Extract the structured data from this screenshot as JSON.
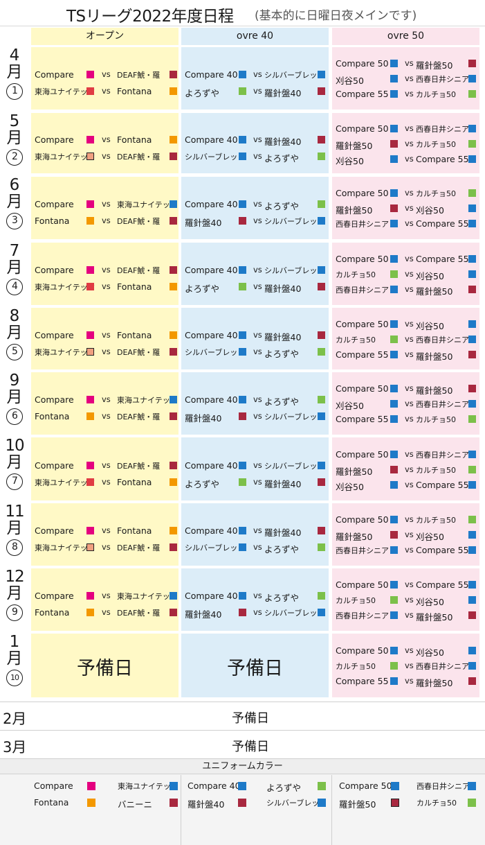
{
  "title": "TSリーグ2022年度日程",
  "subtitle": "(基本的に日曜日夜メインです)",
  "headers": {
    "open": "オープン",
    "o40": "ovre 40",
    "o50": "ovre 50"
  },
  "colors": {
    "magenta": "#e4007f",
    "red": "#e03c44",
    "orange": "#f39800",
    "salmon": "#f0a080",
    "maroon": "#a8283f",
    "blue": "#1e7ac8",
    "green": "#7cc04a"
  },
  "reserve_label": "予備日",
  "months": [
    {
      "month": "4",
      "unit": "月",
      "round": "1",
      "open": [
        [
          "Compare",
          "magenta",
          "DEAF鯱・羅",
          "maroon"
        ],
        [
          "東海ユナイテッド",
          "red",
          "Fontana",
          "orange"
        ]
      ],
      "o40": [
        [
          "Compare 40",
          "blue",
          "シルバーブレッド",
          "blue"
        ],
        [
          "よろずや",
          "green",
          "羅針盤40",
          "maroon"
        ]
      ],
      "o50": [
        [
          "Compare 50",
          "blue",
          "羅針盤50",
          "maroon"
        ],
        [
          "刈谷50",
          "blue",
          "西春日井シニア",
          "blue"
        ],
        [
          "Compare 55",
          "blue",
          "カルチョ50",
          "green"
        ]
      ]
    },
    {
      "month": "5",
      "unit": "月",
      "round": "2",
      "open": [
        [
          "Compare",
          "magenta",
          "Fontana",
          "orange"
        ],
        [
          "東海ユナイテッド",
          "salmon",
          "DEAF鯱・羅",
          "maroon"
        ]
      ],
      "o40": [
        [
          "Compare 40",
          "blue",
          "羅針盤40",
          "maroon"
        ],
        [
          "シルバーブレッド",
          "blue",
          "よろずや",
          "green"
        ]
      ],
      "o50": [
        [
          "Compare 50",
          "blue",
          "西春日井シニア",
          "blue"
        ],
        [
          "羅針盤50",
          "maroon",
          "カルチョ50",
          "green"
        ],
        [
          "刈谷50",
          "blue",
          "Compare 55",
          "blue"
        ]
      ]
    },
    {
      "month": "6",
      "unit": "月",
      "round": "3",
      "open": [
        [
          "Compare",
          "magenta",
          "東海ユナイテッド",
          "blue"
        ],
        [
          "Fontana",
          "orange",
          "DEAF鯱・羅",
          "maroon"
        ]
      ],
      "o40": [
        [
          "Compare 40",
          "blue",
          "よろずや",
          "green"
        ],
        [
          "羅針盤40",
          "maroon",
          "シルバーブレッド",
          "blue"
        ]
      ],
      "o50": [
        [
          "Compare 50",
          "blue",
          "カルチョ50",
          "green"
        ],
        [
          "羅針盤50",
          "maroon",
          "刈谷50",
          "blue"
        ],
        [
          "西春日井シニア",
          "blue",
          "Compare 55",
          "blue"
        ]
      ]
    },
    {
      "month": "7",
      "unit": "月",
      "round": "4",
      "open": [
        [
          "Compare",
          "magenta",
          "DEAF鯱・羅",
          "maroon"
        ],
        [
          "東海ユナイテッド",
          "red",
          "Fontana",
          "orange"
        ]
      ],
      "o40": [
        [
          "Compare 40",
          "blue",
          "シルバーブレッド",
          "blue"
        ],
        [
          "よろずや",
          "green",
          "羅針盤40",
          "maroon"
        ]
      ],
      "o50": [
        [
          "Compare 50",
          "blue",
          "Compare 55",
          "blue"
        ],
        [
          "カルチョ50",
          "green",
          "刈谷50",
          "blue"
        ],
        [
          "西春日井シニア",
          "blue",
          "羅針盤50",
          "maroon"
        ]
      ]
    },
    {
      "month": "8",
      "unit": "月",
      "round": "5",
      "open": [
        [
          "Compare",
          "magenta",
          "Fontana",
          "orange"
        ],
        [
          "東海ユナイテッド",
          "salmon",
          "DEAF鯱・羅",
          "maroon"
        ]
      ],
      "o40": [
        [
          "Compare 40",
          "blue",
          "羅針盤40",
          "maroon"
        ],
        [
          "シルバーブレッド",
          "blue",
          "よろずや",
          "green"
        ]
      ],
      "o50": [
        [
          "Compare 50",
          "blue",
          "刈谷50",
          "blue"
        ],
        [
          "カルチョ50",
          "green",
          "西春日井シニア",
          "blue"
        ],
        [
          "Compare 55",
          "blue",
          "羅針盤50",
          "maroon"
        ]
      ]
    },
    {
      "month": "9",
      "unit": "月",
      "round": "6",
      "open": [
        [
          "Compare",
          "magenta",
          "東海ユナイテッド",
          "blue"
        ],
        [
          "Fontana",
          "orange",
          "DEAF鯱・羅",
          "maroon"
        ]
      ],
      "o40": [
        [
          "Compare 40",
          "blue",
          "よろずや",
          "green"
        ],
        [
          "羅針盤40",
          "maroon",
          "シルバーブレッド",
          "blue"
        ]
      ],
      "o50": [
        [
          "Compare 50",
          "blue",
          "羅針盤50",
          "maroon"
        ],
        [
          "刈谷50",
          "blue",
          "西春日井シニア",
          "blue"
        ],
        [
          "Compare 55",
          "blue",
          "カルチョ50",
          "green"
        ]
      ]
    },
    {
      "month": "10",
      "unit": "月",
      "round": "7",
      "open": [
        [
          "Compare",
          "magenta",
          "DEAF鯱・羅",
          "maroon"
        ],
        [
          "東海ユナイテッド",
          "red",
          "Fontana",
          "orange"
        ]
      ],
      "o40": [
        [
          "Compare 40",
          "blue",
          "シルバーブレッド",
          "blue"
        ],
        [
          "よろずや",
          "green",
          "羅針盤40",
          "maroon"
        ]
      ],
      "o50": [
        [
          "Compare 50",
          "blue",
          "西春日井シニア",
          "blue"
        ],
        [
          "羅針盤50",
          "maroon",
          "カルチョ50",
          "green"
        ],
        [
          "刈谷50",
          "blue",
          "Compare 55",
          "blue"
        ]
      ]
    },
    {
      "month": "11",
      "unit": "月",
      "round": "8",
      "open": [
        [
          "Compare",
          "magenta",
          "Fontana",
          "orange"
        ],
        [
          "東海ユナイテッド",
          "salmon",
          "DEAF鯱・羅",
          "maroon"
        ]
      ],
      "o40": [
        [
          "Compare 40",
          "blue",
          "羅針盤40",
          "maroon"
        ],
        [
          "シルバーブレッド",
          "blue",
          "よろずや",
          "green"
        ]
      ],
      "o50": [
        [
          "Compare 50",
          "blue",
          "カルチョ50",
          "green"
        ],
        [
          "羅針盤50",
          "maroon",
          "刈谷50",
          "blue"
        ],
        [
          "西春日井シニア",
          "blue",
          "Compare 55",
          "blue"
        ]
      ]
    },
    {
      "month": "12",
      "unit": "月",
      "round": "9",
      "open": [
        [
          "Compare",
          "magenta",
          "東海ユナイテッド",
          "blue"
        ],
        [
          "Fontana",
          "orange",
          "DEAF鯱・羅",
          "maroon"
        ]
      ],
      "o40": [
        [
          "Compare 40",
          "blue",
          "よろずや",
          "green"
        ],
        [
          "羅針盤40",
          "maroon",
          "シルバーブレッド",
          "blue"
        ]
      ],
      "o50": [
        [
          "Compare 50",
          "blue",
          "Compare 55",
          "blue"
        ],
        [
          "カルチョ50",
          "green",
          "刈谷50",
          "blue"
        ],
        [
          "西春日井シニア",
          "blue",
          "羅針盤50",
          "maroon"
        ]
      ]
    },
    {
      "month": "1",
      "unit": "月",
      "round": "10",
      "open": "reserve",
      "o40": "reserve",
      "o50": [
        [
          "Compare 50",
          "blue",
          "刈谷50",
          "blue"
        ],
        [
          "カルチョ50",
          "green",
          "西春日井シニア",
          "blue"
        ],
        [
          "Compare 55",
          "blue",
          "羅針盤50",
          "maroon"
        ]
      ]
    }
  ],
  "feb": {
    "label": "2月",
    "text": "予備日"
  },
  "mar": {
    "label": "3月",
    "text": "予備日"
  },
  "legend": {
    "title": "ユニフォームカラー",
    "open": [
      [
        "Compare",
        "magenta"
      ],
      [
        "東海ユナイテッド",
        "blue"
      ],
      [
        "Fontana",
        "orange"
      ],
      [
        "バニーニ",
        "maroon"
      ]
    ],
    "o40": [
      [
        "Compare 40",
        "blue"
      ],
      [
        "よろずや",
        "green"
      ],
      [
        "羅針盤40",
        "maroon"
      ],
      [
        "シルバーブレッド",
        "blue"
      ]
    ],
    "o50": [
      [
        "Compare 50",
        "blue"
      ],
      [
        "西春日井シニア",
        "blue"
      ],
      [
        "羅針盤50",
        "maroon"
      ],
      [
        "カルチョ50",
        "green"
      ]
    ]
  },
  "vs_label": "vs"
}
